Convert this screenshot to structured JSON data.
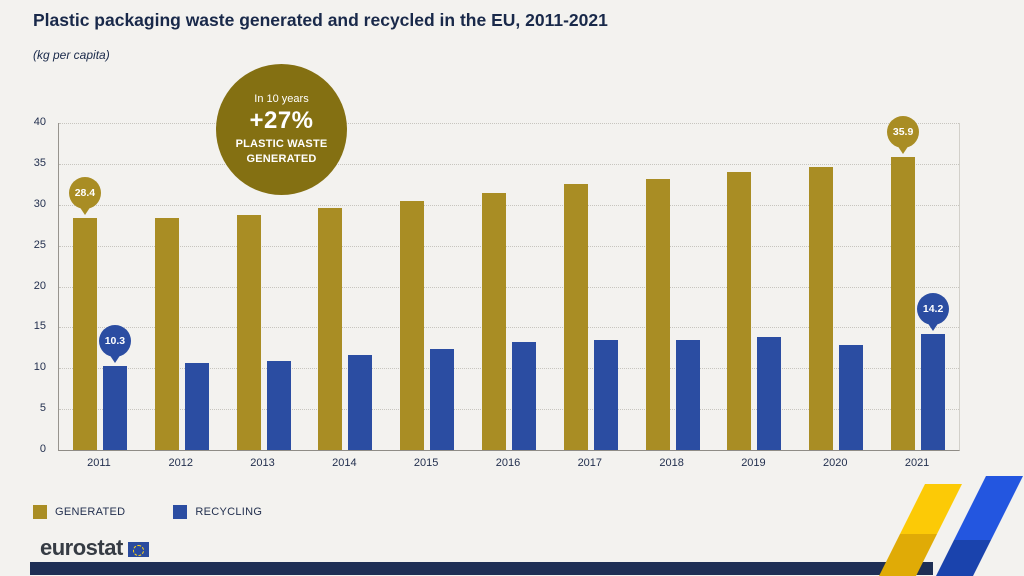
{
  "title": "Plastic packaging waste generated and recycled in the EU, 2011-2021",
  "subtitle": "(kg per capita)",
  "callout": {
    "line1": "In 10 years",
    "line2": "+27%",
    "line3": "PLASTIC WASTE",
    "line4": "GENERATED",
    "bg_color": "#847012"
  },
  "chart_data": {
    "type": "bar",
    "categories": [
      "2011",
      "2012",
      "2013",
      "2014",
      "2015",
      "2016",
      "2017",
      "2018",
      "2019",
      "2020",
      "2021"
    ],
    "series": [
      {
        "name": "GENERATED",
        "color": "#a98d24",
        "values": [
          28.4,
          28.4,
          28.7,
          29.6,
          30.5,
          31.4,
          32.5,
          33.2,
          34.0,
          34.6,
          35.9
        ]
      },
      {
        "name": "RECYCLING",
        "color": "#2b4da2",
        "values": [
          10.3,
          10.6,
          10.9,
          11.6,
          12.3,
          13.2,
          13.4,
          13.5,
          13.8,
          12.8,
          14.2
        ]
      }
    ],
    "title": "Plastic packaging waste generated and recycled in the EU, 2011-2021",
    "xlabel": "",
    "ylabel": "kg per capita",
    "ylim": [
      0,
      40
    ],
    "ytick_step": 5,
    "grid": true,
    "legend_position": "bottom-left",
    "annotations": [
      {
        "category": "2011",
        "series": "GENERATED",
        "label": "28.4"
      },
      {
        "category": "2011",
        "series": "RECYCLING",
        "label": "10.3"
      },
      {
        "category": "2021",
        "series": "GENERATED",
        "label": "35.9"
      },
      {
        "category": "2021",
        "series": "RECYCLING",
        "label": "14.2"
      }
    ]
  },
  "footer": {
    "brand": "eurostat"
  },
  "colors": {
    "page_bg": "#f3f2ef",
    "title_text": "#19294a",
    "generated": "#a98d24",
    "recycling": "#2b4da2",
    "callout_bg": "#847012",
    "footer_navy": "#1e2f55",
    "ribbon_yellow": "#fcca06",
    "ribbon_blue": "#2356e0"
  }
}
